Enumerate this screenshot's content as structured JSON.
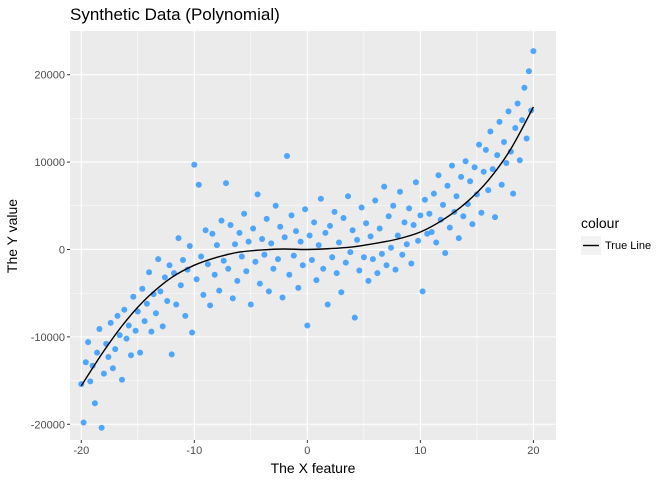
{
  "chart_data": {
    "type": "scatter",
    "title": "Synthetic Data (Polynomial)",
    "xlabel": "The X feature",
    "ylabel": "The Y value",
    "xlim": [
      -21,
      22
    ],
    "ylim": [
      -21800,
      25000
    ],
    "x_ticks": [
      -20,
      -10,
      0,
      10,
      20
    ],
    "x_tick_labels": [
      "-20",
      "-10",
      "0",
      "10",
      "20"
    ],
    "y_ticks": [
      -20000,
      -10000,
      0,
      10000,
      20000
    ],
    "y_tick_labels": [
      "-20000",
      "-10000",
      "0",
      "10000",
      "20000"
    ],
    "grid": true,
    "legend": {
      "title": "colour",
      "position": "right",
      "entries": [
        "True Line"
      ]
    },
    "colors": {
      "points": "#3399ff",
      "line": "#000000",
      "panel": "#ebebeb",
      "grid": "#ffffff",
      "legend_key": "#f2f2f2"
    },
    "series": [
      {
        "name": "True Line",
        "kind": "line",
        "x": [
          -20,
          -18,
          -16,
          -14,
          -12,
          -10,
          -8,
          -6,
          -4,
          -2,
          0,
          2,
          4,
          6,
          8,
          10,
          12,
          14,
          16,
          18,
          20
        ],
        "values": [
          -15600,
          -11600,
          -8100,
          -5300,
          -3200,
          -1800,
          -900,
          -300,
          -50,
          50,
          0,
          100,
          300,
          700,
          1200,
          2000,
          3400,
          5300,
          7900,
          11500,
          16300
        ]
      },
      {
        "kind": "scatter",
        "points": [
          [
            -20.0,
            -15400
          ],
          [
            -19.8,
            -19800
          ],
          [
            -19.6,
            -12900
          ],
          [
            -19.4,
            -10600
          ],
          [
            -19.2,
            -15100
          ],
          [
            -19.0,
            -13300
          ],
          [
            -18.8,
            -17600
          ],
          [
            -18.6,
            -11800
          ],
          [
            -18.4,
            -9100
          ],
          [
            -18.2,
            -20400
          ],
          [
            -18.0,
            -14200
          ],
          [
            -17.8,
            -10800
          ],
          [
            -17.6,
            -12300
          ],
          [
            -17.4,
            -8400
          ],
          [
            -17.2,
            -13600
          ],
          [
            -17.0,
            -11400
          ],
          [
            -16.8,
            -7600
          ],
          [
            -16.6,
            -9800
          ],
          [
            -16.4,
            -14900
          ],
          [
            -16.2,
            -6900
          ],
          [
            -16.0,
            -10200
          ],
          [
            -15.8,
            -8700
          ],
          [
            -15.6,
            -12100
          ],
          [
            -15.4,
            -5400
          ],
          [
            -15.2,
            -9300
          ],
          [
            -15.0,
            -7100
          ],
          [
            -14.8,
            -11800
          ],
          [
            -14.6,
            -4500
          ],
          [
            -14.4,
            -8200
          ],
          [
            -14.2,
            -6200
          ],
          [
            -14.0,
            -2600
          ],
          [
            -13.8,
            -9400
          ],
          [
            -13.6,
            -5100
          ],
          [
            -13.4,
            -7300
          ],
          [
            -13.2,
            -1100
          ],
          [
            -13.0,
            -4800
          ],
          [
            -12.8,
            -8800
          ],
          [
            -12.6,
            -3200
          ],
          [
            -12.4,
            -5900
          ],
          [
            -12.2,
            -1800
          ],
          [
            -12.0,
            -12000
          ],
          [
            -11.8,
            -2700
          ],
          [
            -11.6,
            -6300
          ],
          [
            -11.4,
            1300
          ],
          [
            -11.2,
            -4100
          ],
          [
            -11.0,
            -1200
          ],
          [
            -10.8,
            -7600
          ],
          [
            -10.6,
            -2300
          ],
          [
            -10.4,
            400
          ],
          [
            -10.2,
            -9500
          ],
          [
            -10.0,
            9700
          ],
          [
            -9.8,
            -3400
          ],
          [
            -9.6,
            7400
          ],
          [
            -9.4,
            -800
          ],
          [
            -9.2,
            -5200
          ],
          [
            -9.0,
            2200
          ],
          [
            -8.8,
            -1700
          ],
          [
            -8.6,
            -6400
          ],
          [
            -8.4,
            1800
          ],
          [
            -8.2,
            -2900
          ],
          [
            -8.0,
            500
          ],
          [
            -7.8,
            -4700
          ],
          [
            -7.6,
            3300
          ],
          [
            -7.4,
            -1300
          ],
          [
            -7.2,
            7600
          ],
          [
            -7.0,
            -2200
          ],
          [
            -6.8,
            2800
          ],
          [
            -6.6,
            -5600
          ],
          [
            -6.4,
            600
          ],
          [
            -6.2,
            -3600
          ],
          [
            -6.0,
            1900
          ],
          [
            -5.8,
            -800
          ],
          [
            -5.6,
            4100
          ],
          [
            -5.4,
            -2500
          ],
          [
            -5.2,
            900
          ],
          [
            -5.0,
            -6300
          ],
          [
            -4.8,
            2400
          ],
          [
            -4.6,
            -1400
          ],
          [
            -4.4,
            6300
          ],
          [
            -4.2,
            -3900
          ],
          [
            -4.0,
            1200
          ],
          [
            -3.8,
            -600
          ],
          [
            -3.6,
            3500
          ],
          [
            -3.4,
            -4800
          ],
          [
            -3.2,
            700
          ],
          [
            -3.0,
            -2200
          ],
          [
            -2.8,
            5000
          ],
          [
            -2.6,
            -1100
          ],
          [
            -2.4,
            2600
          ],
          [
            -2.2,
            -5500
          ],
          [
            -2.0,
            1400
          ],
          [
            -1.8,
            10700
          ],
          [
            -1.6,
            -2900
          ],
          [
            -1.4,
            3900
          ],
          [
            -1.2,
            -700
          ],
          [
            -1.0,
            2100
          ],
          [
            -0.8,
            -4400
          ],
          [
            -0.6,
            900
          ],
          [
            -0.4,
            -1800
          ],
          [
            -0.2,
            4600
          ],
          [
            0.0,
            -8700
          ],
          [
            0.2,
            1600
          ],
          [
            0.4,
            -1200
          ],
          [
            0.6,
            3100
          ],
          [
            0.8,
            -3500
          ],
          [
            1.0,
            500
          ],
          [
            1.2,
            5800
          ],
          [
            1.4,
            -2200
          ],
          [
            1.6,
            1900
          ],
          [
            1.8,
            -6300
          ],
          [
            2.0,
            2700
          ],
          [
            2.2,
            -900
          ],
          [
            2.4,
            4300
          ],
          [
            2.6,
            -2700
          ],
          [
            2.8,
            800
          ],
          [
            3.0,
            -4900
          ],
          [
            3.2,
            3600
          ],
          [
            3.4,
            -1500
          ],
          [
            3.6,
            6100
          ],
          [
            3.8,
            -300
          ],
          [
            4.0,
            2200
          ],
          [
            4.2,
            -7800
          ],
          [
            4.4,
            1100
          ],
          [
            4.6,
            -2400
          ],
          [
            4.8,
            4800
          ],
          [
            5.0,
            -900
          ],
          [
            5.2,
            3000
          ],
          [
            5.4,
            -3600
          ],
          [
            5.6,
            1500
          ],
          [
            5.8,
            -1100
          ],
          [
            6.0,
            5600
          ],
          [
            6.2,
            -2700
          ],
          [
            6.4,
            2400
          ],
          [
            6.6,
            -500
          ],
          [
            6.8,
            7200
          ],
          [
            7.0,
            -1800
          ],
          [
            7.2,
            3800
          ],
          [
            7.4,
            200
          ],
          [
            7.6,
            5000
          ],
          [
            7.8,
            -2300
          ],
          [
            8.0,
            1600
          ],
          [
            8.2,
            6600
          ],
          [
            8.4,
            -600
          ],
          [
            8.6,
            3100
          ],
          [
            8.8,
            600
          ],
          [
            9.0,
            4700
          ],
          [
            9.2,
            -1600
          ],
          [
            9.4,
            2800
          ],
          [
            9.6,
            7700
          ],
          [
            9.8,
            1000
          ],
          [
            10.0,
            3900
          ],
          [
            10.2,
            -4800
          ],
          [
            10.4,
            5700
          ],
          [
            10.6,
            1800
          ],
          [
            10.8,
            4100
          ],
          [
            11.0,
            2000
          ],
          [
            11.2,
            6400
          ],
          [
            11.4,
            800
          ],
          [
            11.6,
            8500
          ],
          [
            11.8,
            3400
          ],
          [
            12.0,
            5100
          ],
          [
            12.2,
            -400
          ],
          [
            12.4,
            7300
          ],
          [
            12.6,
            2500
          ],
          [
            12.8,
            9600
          ],
          [
            13.0,
            4300
          ],
          [
            13.2,
            6100
          ],
          [
            13.4,
            1300
          ],
          [
            13.6,
            8300
          ],
          [
            13.8,
            3800
          ],
          [
            14.0,
            10100
          ],
          [
            14.2,
            5200
          ],
          [
            14.4,
            7800
          ],
          [
            14.6,
            2900
          ],
          [
            14.8,
            9400
          ],
          [
            15.0,
            6300
          ],
          [
            15.2,
            12000
          ],
          [
            15.4,
            4200
          ],
          [
            15.6,
            8900
          ],
          [
            15.8,
            11400
          ],
          [
            16.0,
            6800
          ],
          [
            16.2,
            13500
          ],
          [
            16.4,
            9200
          ],
          [
            16.6,
            3700
          ],
          [
            16.8,
            10800
          ],
          [
            17.0,
            14600
          ],
          [
            17.2,
            7400
          ],
          [
            17.4,
            12300
          ],
          [
            17.6,
            9900
          ],
          [
            17.8,
            15800
          ],
          [
            18.0,
            11200
          ],
          [
            18.2,
            6400
          ],
          [
            18.4,
            13900
          ],
          [
            18.6,
            16700
          ],
          [
            18.8,
            10200
          ],
          [
            19.0,
            14800
          ],
          [
            19.2,
            18500
          ],
          [
            19.4,
            12700
          ],
          [
            19.6,
            20400
          ],
          [
            19.8,
            15900
          ],
          [
            20.0,
            22700
          ]
        ]
      }
    ]
  }
}
